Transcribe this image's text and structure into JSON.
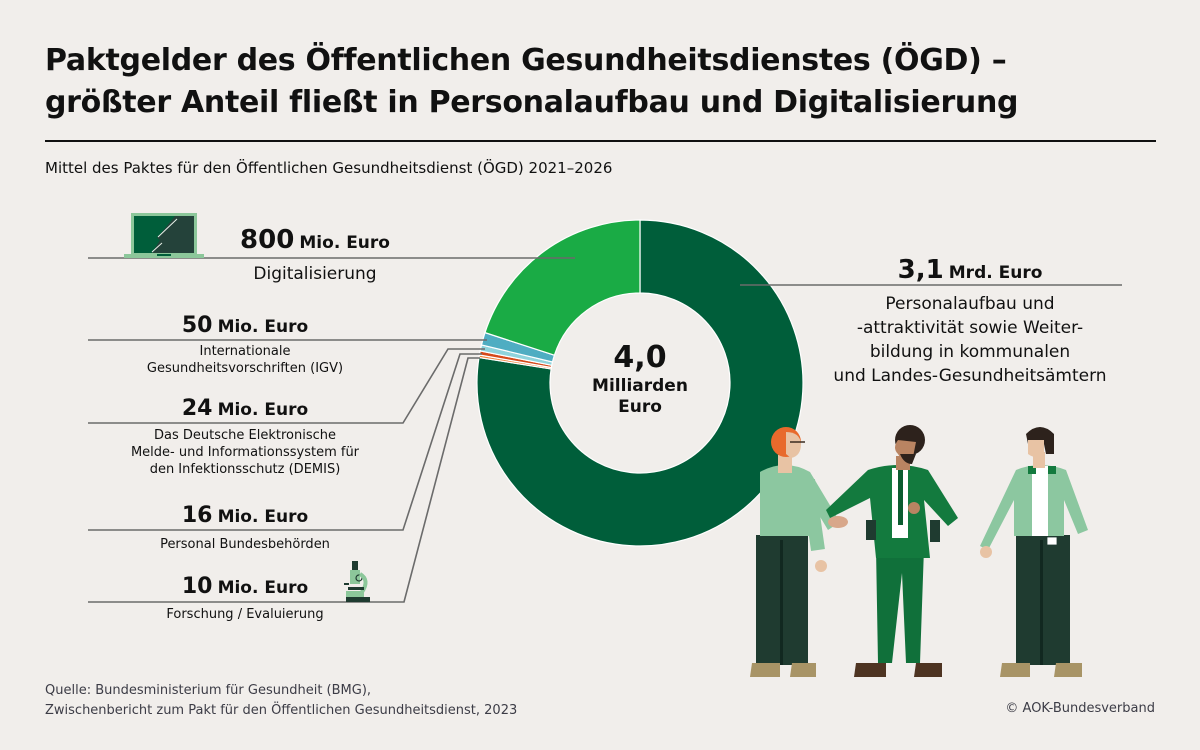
{
  "header": {
    "title_line1": "Paktgelder des Öffentlichen Gesundheitsdienstes (ÖGD) –",
    "title_line2": "größter Anteil fließt in Personalaufbau und Digitalisierung",
    "subtitle": "Mittel des Paktes für den Öffentlichen Gesundheitsdienst (ÖGD) 2021–2026"
  },
  "center": {
    "value": "4,0",
    "unit_line1": "Milliarden",
    "unit_line2": "Euro"
  },
  "labels": [
    {
      "amount": "3,1",
      "unit": "Mrd. Euro",
      "desc": [
        "Personalaufbau und",
        "-attraktivität sowie Weiter-",
        "bildung in kommunalen",
        "und Landes-Gesundheitsämtern"
      ]
    },
    {
      "amount": "800",
      "unit": "Mio. Euro",
      "desc": [
        "Digitalisierung"
      ]
    },
    {
      "amount": "50",
      "unit": "Mio. Euro",
      "desc": [
        "Internationale",
        "Gesundheitsvorschriften (IGV)"
      ]
    },
    {
      "amount": "24",
      "unit": "Mio. Euro",
      "desc": [
        "Das Deutsche Elektronische",
        "Melde- und Informationssystem für",
        "den Infektionsschutz (DEMIS)"
      ]
    },
    {
      "amount": "16",
      "unit": "Mio. Euro",
      "desc": [
        "Personal Bundesbehörden"
      ]
    },
    {
      "amount": "10",
      "unit": "Mio. Euro",
      "desc": [
        "Forschung / Evaluierung"
      ]
    }
  ],
  "chart_data": {
    "type": "pie",
    "variant": "donut",
    "title": "Mittel des Paktes für den Öffentlichen Gesundheitsdienst (ÖGD) 2021–2026",
    "unit": "Mio. Euro",
    "total": 4000,
    "start": "top",
    "direction": "clockwise",
    "slices": [
      {
        "name": "Personalaufbau und -attraktivität sowie Weiterbildung in kommunalen und Landes-Gesundheitsämtern",
        "value": 3100,
        "color": "#005e3a"
      },
      {
        "name": "Forschung/Evaluierung",
        "value": 10,
        "color": "#f0843c"
      },
      {
        "name": "Personal Bundesbehörden",
        "value": 16,
        "color": "#d6491a"
      },
      {
        "name": "Das Deutsche Elektronische Melde- und Informationssystem für den Infektionsschutz (DEMIS)",
        "value": 24,
        "color": "#8fd3dc"
      },
      {
        "name": "Internationale Gesundheitsvorschriften (IGV)",
        "value": 50,
        "color": "#4fadc2"
      },
      {
        "name": "Digitalisierung",
        "value": 800,
        "color": "#1aab45"
      }
    ],
    "center_label": "4,0 Milliarden Euro"
  },
  "icons": [
    "laptop-icon",
    "microscope-icon",
    "people-handshake-illustration"
  ],
  "footer": {
    "source_line1": "Quelle: Bundesministerium für Gesundheit (BMG),",
    "source_line2": "Zwischenbericht zum Pakt für den Öffentlichen Gesundheitsdienst, 2023",
    "copyright": "© AOK-Bundesverband"
  }
}
